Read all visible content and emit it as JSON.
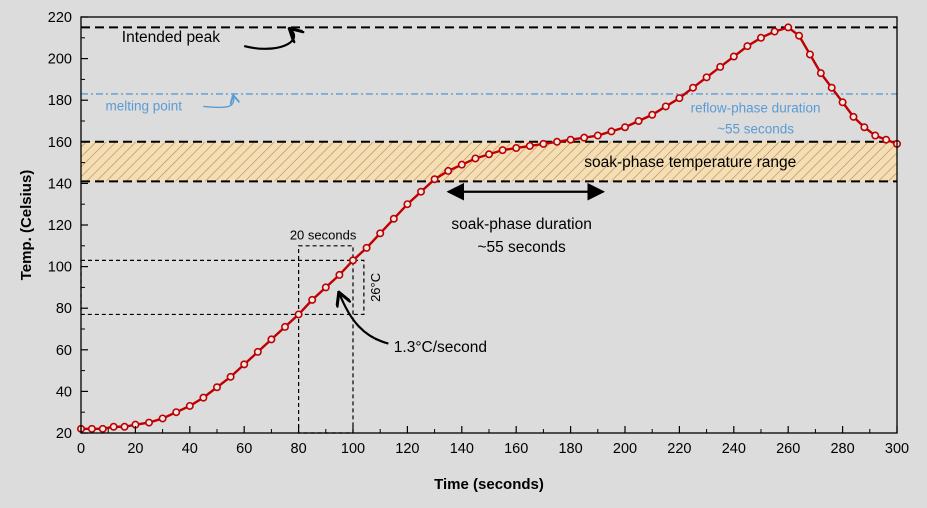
{
  "chart_data": {
    "type": "line",
    "xlabel": "Time (seconds)",
    "ylabel": "Temp. (Celsius)",
    "xlim": [
      0,
      300
    ],
    "ylim": [
      20,
      220
    ],
    "xticks": [
      "0",
      "20",
      "40",
      "60",
      "80",
      "100",
      "120",
      "140",
      "160",
      "180",
      "200",
      "220",
      "240",
      "260",
      "280",
      "300"
    ],
    "yticks": [
      "20",
      "40",
      "60",
      "80",
      "100",
      "120",
      "140",
      "160",
      "180",
      "200",
      "220"
    ],
    "grid": false,
    "series": [
      {
        "color": "#c00000",
        "x": [
          0,
          4,
          8,
          12,
          16,
          20,
          25,
          30,
          35,
          40,
          45,
          50,
          55,
          60,
          65,
          70,
          75,
          80,
          85,
          90,
          95,
          100,
          105,
          110,
          115,
          120,
          125,
          130,
          135,
          140,
          145,
          150,
          155,
          160,
          165,
          170,
          175,
          180,
          185,
          190,
          195,
          200,
          205,
          210,
          215,
          220,
          225,
          230,
          235,
          240,
          245,
          250,
          255,
          260,
          264,
          268,
          272,
          276,
          280,
          284,
          288,
          292,
          296,
          300
        ],
        "y": [
          22,
          22,
          22,
          23,
          23,
          24,
          25,
          27,
          30,
          33,
          37,
          42,
          47,
          53,
          59,
          65,
          71,
          77,
          84,
          90,
          96,
          103,
          109,
          116,
          123,
          130,
          136,
          142,
          146,
          149,
          152,
          154,
          156,
          157,
          158,
          159,
          160,
          161,
          162,
          163,
          165,
          167,
          170,
          173,
          177,
          181,
          186,
          191,
          196,
          201,
          206,
          210,
          213,
          215,
          211,
          202,
          193,
          186,
          179,
          172,
          167,
          163,
          161,
          159
        ]
      }
    ],
    "annotations": {
      "intended_peak": "Intended peak",
      "melting_point": "melting point",
      "reflow_line1": "reflow-phase duration",
      "reflow_line2": "~55 seconds",
      "soak_range": "soak-phase temperature range",
      "soak_dur_line1": "soak-phase duration",
      "soak_dur_line2": "~55 seconds",
      "twenty_seconds": "20 seconds",
      "twenty_six": "26°C",
      "rate": "1.3°C/second"
    },
    "reference_lines": {
      "intended_peak_value": 215,
      "melting_point_value": 183,
      "soak_low": 141,
      "soak_high": 160
    },
    "colors": {
      "background": "#dcdcdc",
      "series": "#c00000",
      "marker_fill": "#e8e8e8",
      "melting": "#5b9bd5",
      "soak_band": "#f5deb3",
      "soak_hatch": "#b08a5a"
    }
  }
}
